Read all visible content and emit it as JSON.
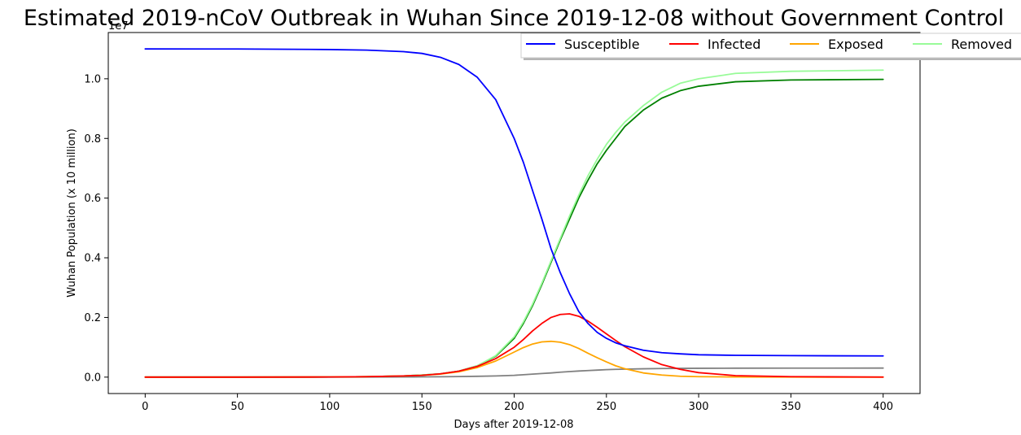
{
  "chart_data": {
    "type": "line",
    "title": "Estimated 2019-nCoV Outbreak in Wuhan Since 2019-12-08 without Government Control",
    "xlabel": "Days after 2019-12-08",
    "ylabel": "Wuhan Population (x 10 million)",
    "y_offset_label": "1e7",
    "xlim": [
      -20,
      420
    ],
    "ylim": [
      -550000,
      11550000
    ],
    "x_ticks": [
      0,
      50,
      100,
      150,
      200,
      250,
      300,
      350,
      400
    ],
    "x_tick_labels": [
      "0",
      "50",
      "100",
      "150",
      "200",
      "250",
      "300",
      "350",
      "400"
    ],
    "y_ticks": [
      0,
      2000000,
      4000000,
      6000000,
      8000000,
      10000000
    ],
    "y_tick_labels": [
      "0.0",
      "0.2",
      "0.4",
      "0.6",
      "0.8",
      "1.0"
    ],
    "grid": false,
    "legend_position": "top-right",
    "x": [
      0,
      50,
      100,
      120,
      140,
      150,
      160,
      170,
      180,
      190,
      200,
      205,
      210,
      215,
      220,
      225,
      230,
      235,
      240,
      245,
      250,
      255,
      260,
      270,
      280,
      290,
      300,
      320,
      350,
      400
    ],
    "series": [
      {
        "name": "Susceptible",
        "color": "#0000ff",
        "values": [
          11000000,
          10998000,
          10980000,
          10960000,
          10910000,
          10850000,
          10720000,
          10480000,
          10050000,
          9300000,
          8000000,
          7200000,
          6250000,
          5300000,
          4300000,
          3500000,
          2800000,
          2200000,
          1800000,
          1500000,
          1300000,
          1150000,
          1050000,
          900000,
          820000,
          780000,
          750000,
          730000,
          720000,
          710000
        ]
      },
      {
        "name": "Infected",
        "color": "#ff0000",
        "values": [
          0,
          0,
          5000,
          15000,
          40000,
          60000,
          110000,
          200000,
          360000,
          620000,
          1000000,
          1260000,
          1550000,
          1800000,
          2000000,
          2100000,
          2120000,
          2040000,
          1880000,
          1670000,
          1450000,
          1230000,
          1020000,
          680000,
          420000,
          260000,
          150000,
          50000,
          15000,
          2000
        ]
      },
      {
        "name": "Exposed",
        "color": "#ffa500",
        "values": [
          0,
          0,
          5000,
          15000,
          40000,
          60000,
          100000,
          180000,
          320000,
          540000,
          840000,
          990000,
          1110000,
          1180000,
          1200000,
          1170000,
          1090000,
          960000,
          800000,
          650000,
          510000,
          380000,
          280000,
          140000,
          70000,
          30000,
          15000,
          5000,
          1000,
          0
        ]
      },
      {
        "name": "Removed",
        "color": "#98fb98",
        "values": [
          0,
          0,
          5000,
          15000,
          40000,
          70000,
          110000,
          200000,
          380000,
          720000,
          1350000,
          1850000,
          2450000,
          3150000,
          3900000,
          4650000,
          5400000,
          6100000,
          6750000,
          7300000,
          7800000,
          8200000,
          8550000,
          9100000,
          9550000,
          9850000,
          10000000,
          10180000,
          10250000,
          10290000
        ]
      },
      {
        "name": "",
        "color": "#008000",
        "values": [
          0,
          0,
          5000,
          15000,
          40000,
          70000,
          110000,
          200000,
          380000,
          700000,
          1300000,
          1800000,
          2400000,
          3100000,
          3850000,
          4600000,
          5300000,
          6000000,
          6600000,
          7150000,
          7600000,
          8000000,
          8400000,
          8950000,
          9350000,
          9600000,
          9750000,
          9900000,
          9960000,
          9980000
        ]
      },
      {
        "name": "",
        "color": "#808080",
        "values": [
          0,
          0,
          0,
          2000,
          5000,
          8000,
          12000,
          18000,
          28000,
          40000,
          60000,
          80000,
          100000,
          120000,
          140000,
          165000,
          185000,
          205000,
          220000,
          235000,
          250000,
          260000,
          268000,
          280000,
          288000,
          293000,
          296000,
          300000,
          302000,
          303000
        ]
      }
    ]
  }
}
